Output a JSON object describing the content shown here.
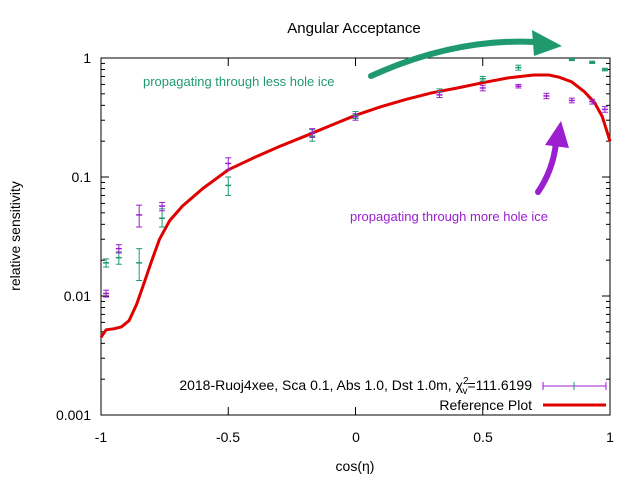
{
  "chart_data": {
    "type": "scatter",
    "title": "Angular Acceptance",
    "xlabel": "cos(η)",
    "ylabel": "relative sensitivity",
    "xlim": [
      -1,
      1
    ],
    "ylim": [
      0.001,
      1
    ],
    "yscale": "log",
    "x_ticks": [
      "-1",
      "-0.5",
      "0",
      "0.5",
      "1"
    ],
    "y_ticks": [
      "1",
      "0.1",
      "0.01",
      "0.001"
    ],
    "legend_position": "bottom-right",
    "grid": false,
    "colors": {
      "green": "#1f9a6e",
      "purple": "#9b1ed1",
      "reference": "#e00000"
    },
    "legend": {
      "series_label_prefix": "2018-Ruoj4xee, Sca 0.1, Abs 1.0, Dst 1.0m, χ",
      "chi_sup": "2",
      "chi_sub": "v",
      "chi_value": "=111.6199",
      "reference_label": "Reference Plot"
    },
    "annotations": {
      "green_text": "propagating through less hole ice",
      "purple_text": "propagating through more hole ice"
    },
    "series": [
      {
        "color_key": "green",
        "points": [
          {
            "x": -0.98,
            "y": 0.019,
            "lo": 0.0175,
            "hi": 0.0205
          },
          {
            "x": -0.93,
            "y": 0.021,
            "lo": 0.0185,
            "hi": 0.0235
          },
          {
            "x": -0.85,
            "y": 0.019,
            "lo": 0.0135,
            "hi": 0.025
          },
          {
            "x": -0.76,
            "y": 0.045,
            "lo": 0.038,
            "hi": 0.054
          },
          {
            "x": -0.5,
            "y": 0.085,
            "lo": 0.07,
            "hi": 0.1
          },
          {
            "x": -0.17,
            "y": 0.22,
            "lo": 0.2,
            "hi": 0.25
          },
          {
            "x": 0.0,
            "y": 0.33,
            "lo": 0.31,
            "hi": 0.355
          },
          {
            "x": 0.33,
            "y": 0.52,
            "lo": 0.49,
            "hi": 0.55
          },
          {
            "x": 0.5,
            "y": 0.67,
            "lo": 0.64,
            "hi": 0.7
          },
          {
            "x": 0.64,
            "y": 0.83,
            "lo": 0.79,
            "hi": 0.87
          },
          {
            "x": 0.85,
            "y": 0.97,
            "lo": 0.95,
            "hi": 0.99
          },
          {
            "x": 0.93,
            "y": 0.92,
            "lo": 0.9,
            "hi": 0.94
          },
          {
            "x": 0.98,
            "y": 0.8,
            "lo": 0.78,
            "hi": 0.82
          }
        ]
      },
      {
        "color_key": "purple",
        "points": [
          {
            "x": -0.98,
            "y": 0.0105,
            "lo": 0.0098,
            "hi": 0.0112
          },
          {
            "x": -0.93,
            "y": 0.025,
            "lo": 0.023,
            "hi": 0.027
          },
          {
            "x": -0.85,
            "y": 0.048,
            "lo": 0.038,
            "hi": 0.058
          },
          {
            "x": -0.76,
            "y": 0.057,
            "lo": 0.052,
            "hi": 0.061
          },
          {
            "x": -0.5,
            "y": 0.13,
            "lo": 0.115,
            "hi": 0.145
          },
          {
            "x": -0.17,
            "y": 0.235,
            "lo": 0.215,
            "hi": 0.255
          },
          {
            "x": 0.0,
            "y": 0.32,
            "lo": 0.3,
            "hi": 0.34
          },
          {
            "x": 0.33,
            "y": 0.49,
            "lo": 0.465,
            "hi": 0.515
          },
          {
            "x": 0.5,
            "y": 0.56,
            "lo": 0.53,
            "hi": 0.59
          },
          {
            "x": 0.64,
            "y": 0.58,
            "lo": 0.56,
            "hi": 0.6
          },
          {
            "x": 0.75,
            "y": 0.48,
            "lo": 0.455,
            "hi": 0.505
          },
          {
            "x": 0.85,
            "y": 0.44,
            "lo": 0.42,
            "hi": 0.46
          },
          {
            "x": 0.93,
            "y": 0.43,
            "lo": 0.41,
            "hi": 0.45
          },
          {
            "x": 0.98,
            "y": 0.37,
            "lo": 0.35,
            "hi": 0.39
          }
        ]
      }
    ],
    "reference_curve": [
      {
        "x": -1.0,
        "y": 0.0045
      },
      {
        "x": -0.98,
        "y": 0.0052
      },
      {
        "x": -0.95,
        "y": 0.0053
      },
      {
        "x": -0.92,
        "y": 0.0055
      },
      {
        "x": -0.89,
        "y": 0.0062
      },
      {
        "x": -0.86,
        "y": 0.0085
      },
      {
        "x": -0.83,
        "y": 0.013
      },
      {
        "x": -0.8,
        "y": 0.02
      },
      {
        "x": -0.77,
        "y": 0.03
      },
      {
        "x": -0.73,
        "y": 0.043
      },
      {
        "x": -0.68,
        "y": 0.057
      },
      {
        "x": -0.6,
        "y": 0.08
      },
      {
        "x": -0.5,
        "y": 0.115
      },
      {
        "x": -0.4,
        "y": 0.145
      },
      {
        "x": -0.3,
        "y": 0.18
      },
      {
        "x": -0.2,
        "y": 0.22
      },
      {
        "x": -0.1,
        "y": 0.27
      },
      {
        "x": 0.0,
        "y": 0.33
      },
      {
        "x": 0.1,
        "y": 0.39
      },
      {
        "x": 0.2,
        "y": 0.45
      },
      {
        "x": 0.3,
        "y": 0.51
      },
      {
        "x": 0.4,
        "y": 0.56
      },
      {
        "x": 0.5,
        "y": 0.62
      },
      {
        "x": 0.6,
        "y": 0.68
      },
      {
        "x": 0.7,
        "y": 0.72
      },
      {
        "x": 0.76,
        "y": 0.72
      },
      {
        "x": 0.8,
        "y": 0.69
      },
      {
        "x": 0.85,
        "y": 0.63
      },
      {
        "x": 0.9,
        "y": 0.52
      },
      {
        "x": 0.94,
        "y": 0.42
      },
      {
        "x": 0.97,
        "y": 0.32
      },
      {
        "x": 1.0,
        "y": 0.2
      }
    ]
  }
}
